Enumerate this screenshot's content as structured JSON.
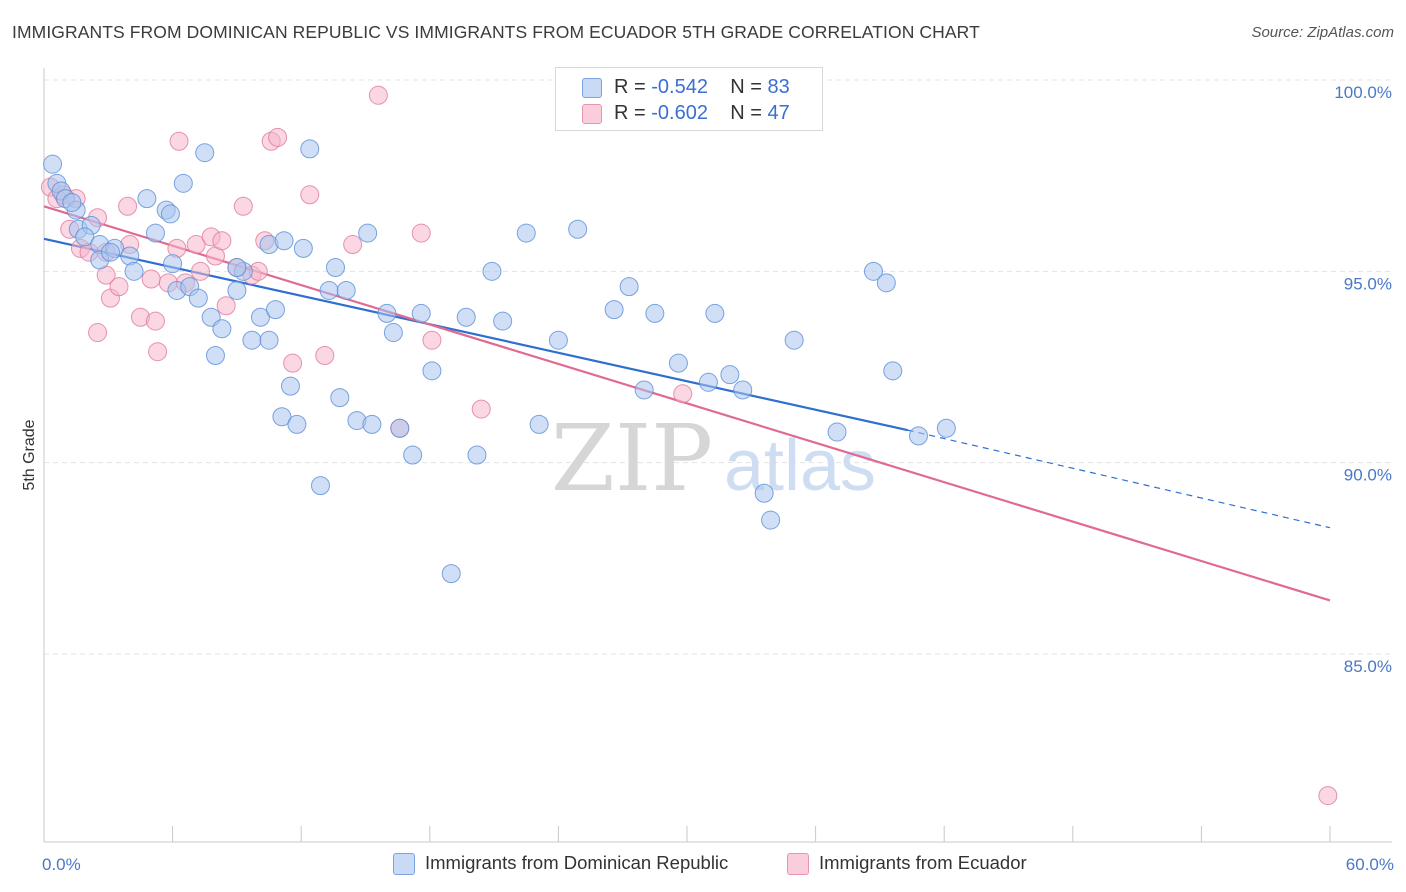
{
  "title": "IMMIGRANTS FROM DOMINICAN REPUBLIC VS IMMIGRANTS FROM ECUADOR 5TH GRADE CORRELATION CHART",
  "source": "Source: ZipAtlas.com",
  "watermark": {
    "zip": "ZIP",
    "atlas": "atlas"
  },
  "legend": {
    "rows": [
      {
        "r_label": "R = ",
        "r_value": "-0.542",
        "n_label": "N = ",
        "n_value": "83"
      },
      {
        "r_label": "R = ",
        "r_value": "-0.602",
        "n_label": "N = ",
        "n_value": "47"
      }
    ]
  },
  "chart_data": {
    "type": "scatter",
    "title": "IMMIGRANTS FROM DOMINICAN REPUBLIC VS IMMIGRANTS FROM ECUADOR 5TH GRADE CORRELATION CHART",
    "xlabel": "",
    "ylabel": "5th Grade",
    "xlim": [
      0,
      60
    ],
    "ylim": [
      80.5,
      101.0
    ],
    "x_tick_labels": [
      "0.0%",
      "60.0%"
    ],
    "y_ticks": [
      85,
      90,
      95,
      100
    ],
    "y_tick_labels": [
      "85.0%",
      "90.0%",
      "95.0%",
      "100.0%"
    ],
    "grid": true,
    "legend_position": "bottom",
    "colors": {
      "blue_fill": "#a9c5ef",
      "blue_stroke": "#5b8fd8",
      "blue_line": "#2e6fd0",
      "pink_fill": "#f5b6ca",
      "pink_stroke": "#e07a9b",
      "pink_line": "#e06a92",
      "axis_text": "#4a78c8",
      "grid": "#e3e3e3"
    },
    "series": [
      {
        "name": "Immigrants from Dominican Republic",
        "r": -0.542,
        "n": 83,
        "trend": {
          "x0": 0,
          "y0": 95.85,
          "x1": 40.3,
          "y1": 90.85,
          "x_dash_end": 60,
          "y_dash_end": 88.3
        },
        "points": [
          [
            0.4,
            97.8
          ],
          [
            0.6,
            97.3
          ],
          [
            0.8,
            97.1
          ],
          [
            1.0,
            96.9
          ],
          [
            1.5,
            96.6
          ],
          [
            1.3,
            96.8
          ],
          [
            1.6,
            96.1
          ],
          [
            2.2,
            96.2
          ],
          [
            1.9,
            95.9
          ],
          [
            2.6,
            95.7
          ],
          [
            3.3,
            95.6
          ],
          [
            2.6,
            95.3
          ],
          [
            3.1,
            95.5
          ],
          [
            4.0,
            95.4
          ],
          [
            4.8,
            96.9
          ],
          [
            5.2,
            96.0
          ],
          [
            5.7,
            96.6
          ],
          [
            5.9,
            96.5
          ],
          [
            6.0,
            95.2
          ],
          [
            6.5,
            97.3
          ],
          [
            6.2,
            94.5
          ],
          [
            6.8,
            94.6
          ],
          [
            7.2,
            94.3
          ],
          [
            7.5,
            98.1
          ],
          [
            7.8,
            93.8
          ],
          [
            8.3,
            93.5
          ],
          [
            8.0,
            92.8
          ],
          [
            9.0,
            94.5
          ],
          [
            9.3,
            95.0
          ],
          [
            9.0,
            95.1
          ],
          [
            9.7,
            93.2
          ],
          [
            10.1,
            93.8
          ],
          [
            10.5,
            93.2
          ],
          [
            10.8,
            94.0
          ],
          [
            10.5,
            95.7
          ],
          [
            11.2,
            95.8
          ],
          [
            11.5,
            92.0
          ],
          [
            11.1,
            91.2
          ],
          [
            11.8,
            91.0
          ],
          [
            12.1,
            95.6
          ],
          [
            12.4,
            98.2
          ],
          [
            12.9,
            89.4
          ],
          [
            13.3,
            94.5
          ],
          [
            13.6,
            95.1
          ],
          [
            14.1,
            94.5
          ],
          [
            13.8,
            91.7
          ],
          [
            14.6,
            91.1
          ],
          [
            15.1,
            96.0
          ],
          [
            15.3,
            91.0
          ],
          [
            16.0,
            93.9
          ],
          [
            16.3,
            93.4
          ],
          [
            16.6,
            90.9
          ],
          [
            17.2,
            90.2
          ],
          [
            18.1,
            92.4
          ],
          [
            17.6,
            93.9
          ],
          [
            19.0,
            87.1
          ],
          [
            19.7,
            93.8
          ],
          [
            20.2,
            90.2
          ],
          [
            20.9,
            95.0
          ],
          [
            21.4,
            93.7
          ],
          [
            22.5,
            96.0
          ],
          [
            23.1,
            91.0
          ],
          [
            24.0,
            93.2
          ],
          [
            24.9,
            96.1
          ],
          [
            26.6,
            94.0
          ],
          [
            27.3,
            94.6
          ],
          [
            28.0,
            91.9
          ],
          [
            28.5,
            93.9
          ],
          [
            29.6,
            92.6
          ],
          [
            31.0,
            92.1
          ],
          [
            31.3,
            93.9
          ],
          [
            32.0,
            92.3
          ],
          [
            32.6,
            91.9
          ],
          [
            33.6,
            89.2
          ],
          [
            33.9,
            88.5
          ],
          [
            35.0,
            93.2
          ],
          [
            37.0,
            90.8
          ],
          [
            38.7,
            95.0
          ],
          [
            39.3,
            94.7
          ],
          [
            39.6,
            92.4
          ],
          [
            40.8,
            90.7
          ],
          [
            42.1,
            90.9
          ],
          [
            4.2,
            95.0
          ]
        ]
      },
      {
        "name": "Immigrants from Ecuador",
        "r": -0.602,
        "n": 47,
        "trend": {
          "x0": 0,
          "y0": 96.7,
          "x1": 60,
          "y1": 86.4
        },
        "points": [
          [
            0.3,
            97.2
          ],
          [
            0.6,
            96.9
          ],
          [
            0.9,
            97.0
          ],
          [
            1.2,
            96.1
          ],
          [
            1.5,
            96.9
          ],
          [
            1.7,
            95.6
          ],
          [
            2.1,
            95.5
          ],
          [
            2.5,
            96.4
          ],
          [
            2.9,
            95.5
          ],
          [
            2.5,
            93.4
          ],
          [
            2.9,
            94.9
          ],
          [
            3.1,
            94.3
          ],
          [
            3.5,
            94.6
          ],
          [
            3.9,
            96.7
          ],
          [
            4.0,
            95.7
          ],
          [
            4.5,
            93.8
          ],
          [
            5.0,
            94.8
          ],
          [
            5.2,
            93.7
          ],
          [
            5.3,
            92.9
          ],
          [
            5.8,
            94.7
          ],
          [
            6.2,
            95.6
          ],
          [
            6.6,
            94.7
          ],
          [
            6.3,
            98.4
          ],
          [
            7.1,
            95.7
          ],
          [
            7.3,
            95.0
          ],
          [
            7.8,
            95.9
          ],
          [
            8.0,
            95.4
          ],
          [
            8.3,
            95.8
          ],
          [
            8.5,
            94.1
          ],
          [
            9.0,
            95.1
          ],
          [
            9.3,
            96.7
          ],
          [
            9.7,
            94.9
          ],
          [
            10.0,
            95.0
          ],
          [
            10.3,
            95.8
          ],
          [
            10.6,
            98.4
          ],
          [
            10.9,
            98.5
          ],
          [
            11.6,
            92.6
          ],
          [
            12.4,
            97.0
          ],
          [
            13.1,
            92.8
          ],
          [
            14.4,
            95.7
          ],
          [
            15.6,
            99.6
          ],
          [
            16.6,
            90.9
          ],
          [
            17.6,
            96.0
          ],
          [
            18.1,
            93.2
          ],
          [
            20.4,
            91.4
          ],
          [
            29.8,
            91.8
          ],
          [
            59.9,
            81.3
          ]
        ]
      }
    ]
  }
}
